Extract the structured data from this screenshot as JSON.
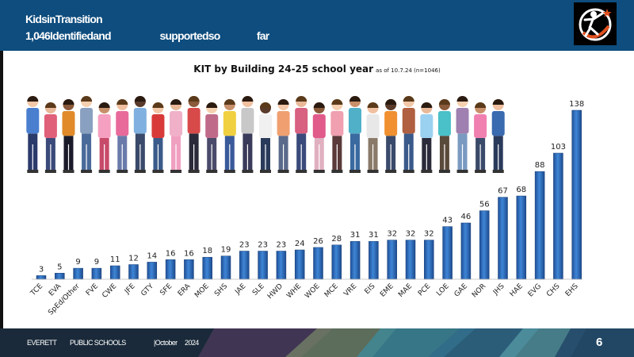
{
  "header": {
    "line1": "KidsinTransition",
    "line2": "1,046Identifiedand                    supportedso               far"
  },
  "footer": {
    "org1": "EVERETT",
    "org2": "PUBLIC SCHOOLS",
    "date": "|October     2024",
    "page": "6"
  },
  "chart_data": {
    "type": "bar",
    "title": "KIT by Building 24-25 school year",
    "subtitle": "as of 10.7.24 (n=1046)",
    "categories": [
      "TCE",
      "EVA",
      "SpEd/Other",
      "FVE",
      "CWE",
      "JFE",
      "GTY",
      "SFE",
      "ERA",
      "MOE",
      "SHS",
      "JAE",
      "SLE",
      "HWD",
      "WHE",
      "WOE",
      "MCE",
      "VRE",
      "EIS",
      "EME",
      "MAE",
      "PCE",
      "LOE",
      "GAE",
      "NOR",
      "JHS",
      "HAE",
      "EVG",
      "CHS",
      "EHS"
    ],
    "values": [
      3,
      5,
      9,
      9,
      11,
      12,
      14,
      16,
      16,
      18,
      19,
      23,
      23,
      23,
      24,
      26,
      28,
      31,
      31,
      32,
      32,
      32,
      43,
      46,
      56,
      67,
      68,
      88,
      103,
      138
    ],
    "ylim": [
      0,
      138
    ],
    "bar_color": "#2f6bbf",
    "grid": false,
    "legend": "none"
  }
}
